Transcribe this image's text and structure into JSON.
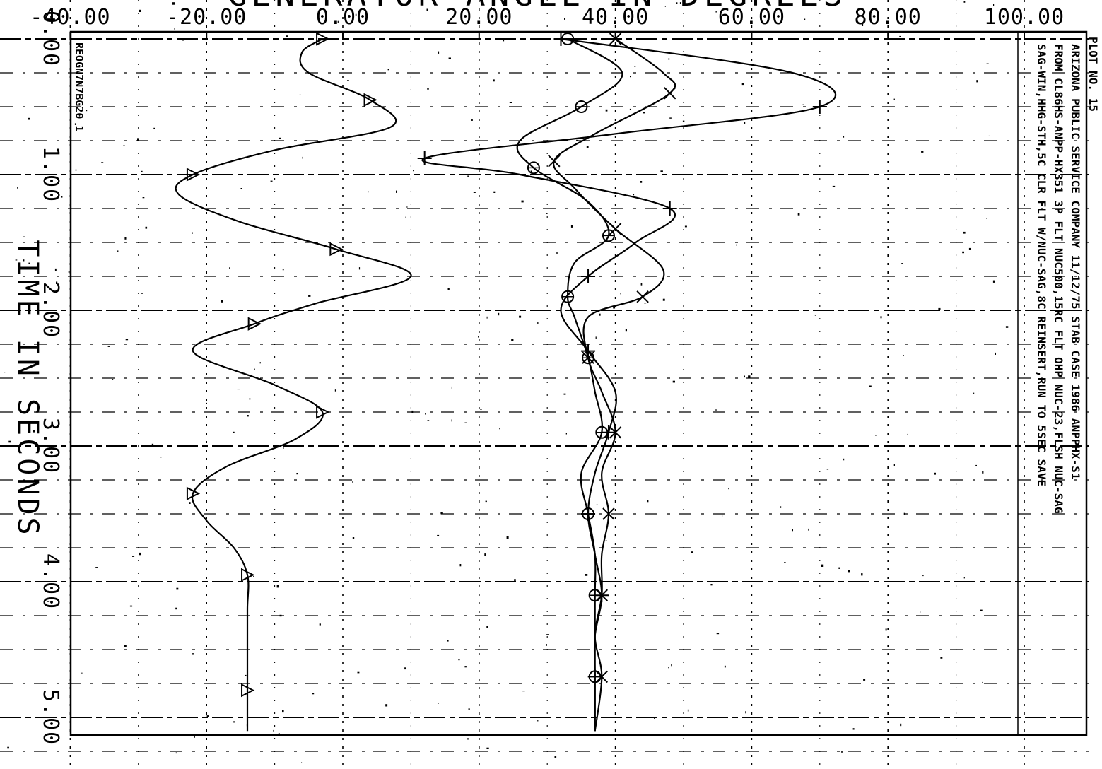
{
  "chart_data": {
    "type": "line",
    "title": "GENERATOR ANGLE IN DEGREES",
    "xlabel": "TIME IN SECONDS",
    "ylabel": "GENERATOR ANGLE IN DEGREES",
    "orientation": "rotated",
    "xlim": [
      0,
      5.2
    ],
    "ylim": [
      -40,
      100
    ],
    "x_ticks": [
      "0.00",
      "1.00",
      "2.00",
      "3.00",
      "4.00",
      "5.00"
    ],
    "y_ticks": [
      "-40.00",
      "-20.00",
      "0.00",
      "20.00",
      "40.00",
      "60.00",
      "80.00",
      "100.00"
    ],
    "grid": true,
    "run_label": "REOGN7N7BG20 1",
    "plot_number": "PLOT NO. 15",
    "info_lines": [
      "ARIZONA PUBLIC SERVICE COMPANY          11/12/75    STAB CASE 1986 ANPPHX-S1",
      "FROM CL86HS-ANPP-HX351    3P FLT NUC500,15RC FLT OHP NUC-23,FLSH NUC-SAG",
      "SAG-WIN,HHG-STH,5C CLR FLT W/NUC-SAG,8C REINSERT,RUN TO 5SEC SAVE"
    ],
    "series": [
      {
        "marker": "triangle",
        "x": [
          0.0,
          0.1,
          0.25,
          0.45,
          0.65,
          0.82,
          1.0,
          1.15,
          1.35,
          1.55,
          1.75,
          1.95,
          2.1,
          2.3,
          2.55,
          2.75,
          2.95,
          3.15,
          3.35,
          3.55,
          3.75,
          3.95,
          4.2,
          4.5,
          4.8,
          5.1
        ],
        "y": [
          -3,
          -6,
          -5,
          4,
          7,
          -10,
          -22,
          -24,
          -15,
          -1,
          10,
          -4,
          -13,
          -22,
          -10,
          -3,
          -7,
          -17,
          -22,
          -20,
          -16,
          -14,
          -14,
          -14,
          -14,
          -14
        ]
      },
      {
        "marker": "plus",
        "x": [
          0.0,
          0.25,
          0.5,
          0.7,
          0.88,
          1.0,
          1.25,
          1.5,
          1.75,
          2.0,
          2.3,
          2.6,
          2.9,
          3.2,
          3.5,
          3.8,
          4.1,
          4.4,
          4.7,
          5.1
        ],
        "y": [
          32,
          66,
          70,
          40,
          12,
          26,
          48,
          43,
          36,
          32,
          36,
          40,
          39,
          37,
          36,
          37,
          38,
          37,
          37,
          37
        ]
      },
      {
        "marker": "x",
        "x": [
          0.0,
          0.25,
          0.4,
          0.7,
          0.9,
          1.1,
          1.4,
          1.7,
          1.9,
          2.05,
          2.35,
          2.6,
          2.9,
          3.2,
          3.5,
          3.8,
          4.1,
          4.4,
          4.7,
          5.1
        ],
        "y": [
          40,
          47,
          48,
          37,
          31,
          34,
          40,
          47,
          44,
          36,
          36,
          38,
          40,
          38,
          39,
          38,
          38,
          37,
          38,
          37
        ]
      },
      {
        "marker": "circle",
        "x": [
          0.0,
          0.25,
          0.5,
          0.75,
          0.95,
          1.2,
          1.45,
          1.65,
          1.9,
          2.05,
          2.35,
          2.6,
          2.9,
          3.2,
          3.5,
          3.8,
          4.1,
          4.4,
          4.7,
          5.1
        ],
        "y": [
          33,
          41,
          35,
          26,
          28,
          36,
          39,
          34,
          33,
          34,
          36,
          37,
          38,
          35,
          36,
          37,
          37,
          37,
          37,
          37
        ]
      }
    ]
  }
}
